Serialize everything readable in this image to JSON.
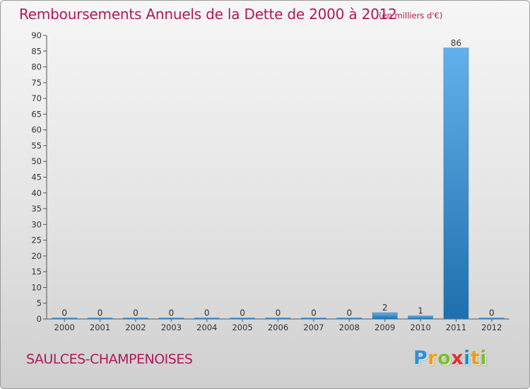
{
  "header": {
    "title": "Remboursements Annuels de la Dette de 2000 à 2012",
    "unit": "(en milliers d'€)"
  },
  "footer": {
    "town": "SAULCES-CHAMPENOISES",
    "logo_letters": [
      "P",
      "r",
      "o",
      "x",
      "i",
      "t",
      "i"
    ],
    "logo_colors": [
      "#2f8fd8",
      "#f29a1a",
      "#7cbf2c",
      "#e2312d",
      "#1b8fd0",
      "#f29a1a",
      "#7cbf2c"
    ]
  },
  "colors": {
    "title": "#b0185a",
    "bar_light": "#63b1ea",
    "bar_dark": "#1f6fae",
    "axis": "#555555",
    "text": "#333333"
  },
  "chart_data": {
    "type": "bar",
    "categories": [
      "2000",
      "2001",
      "2002",
      "2003",
      "2004",
      "2005",
      "2006",
      "2007",
      "2008",
      "2009",
      "2010",
      "2011",
      "2012"
    ],
    "values": [
      0,
      0,
      0,
      0,
      0,
      0,
      0,
      0,
      0,
      2,
      1,
      86,
      0
    ],
    "data_labels": [
      "0",
      "0",
      "0",
      "0",
      "0",
      "0",
      "0",
      "0",
      "0",
      "2",
      "1",
      "86",
      "0"
    ],
    "yticks": [
      0,
      5,
      10,
      15,
      20,
      25,
      30,
      35,
      40,
      45,
      50,
      55,
      60,
      65,
      70,
      75,
      80,
      85,
      90
    ],
    "ylim": [
      0,
      90
    ],
    "grid": false,
    "legend": "none"
  }
}
